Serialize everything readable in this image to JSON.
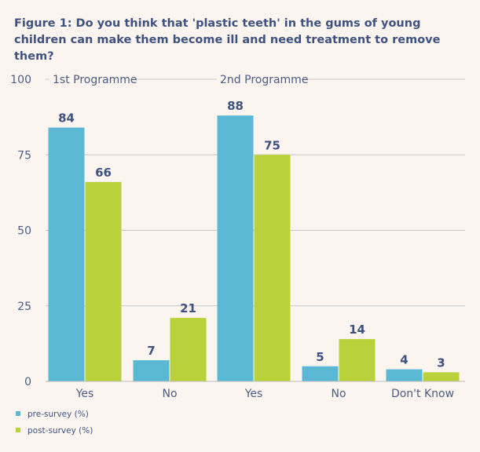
{
  "title": "Figure 1: Do you think that 'plastic teeth' in the gums of young children can make them become ill and need treatment to remove them?",
  "colors": {
    "pre": "#5bb8d4",
    "post": "#b9d23c",
    "grid": "#c8c8c8",
    "text": "#3d5280"
  },
  "chart_data": {
    "type": "bar",
    "title": "Figure 1: Do you think that 'plastic teeth' in the gums of young children can make them become ill and need treatment to remove them?",
    "xlabel": "",
    "ylabel": "",
    "ylim": [
      0,
      100
    ],
    "yticks": [
      0,
      25,
      50,
      75,
      100
    ],
    "grid": true,
    "legend_placement": "bottom-left",
    "groups": [
      {
        "label": "1st Programme",
        "categories": [
          "Yes",
          "No"
        ]
      },
      {
        "label": "2nd Programme",
        "categories": [
          "Yes",
          "No",
          "Don't Know"
        ]
      }
    ],
    "categories": [
      "Yes",
      "No",
      "Yes",
      "No",
      "Don't Know"
    ],
    "series": [
      {
        "name": "pre-survey (%)",
        "values": [
          84,
          7,
          88,
          5,
          4
        ]
      },
      {
        "name": "post-survey (%)",
        "values": [
          66,
          21,
          75,
          14,
          3
        ]
      }
    ]
  }
}
